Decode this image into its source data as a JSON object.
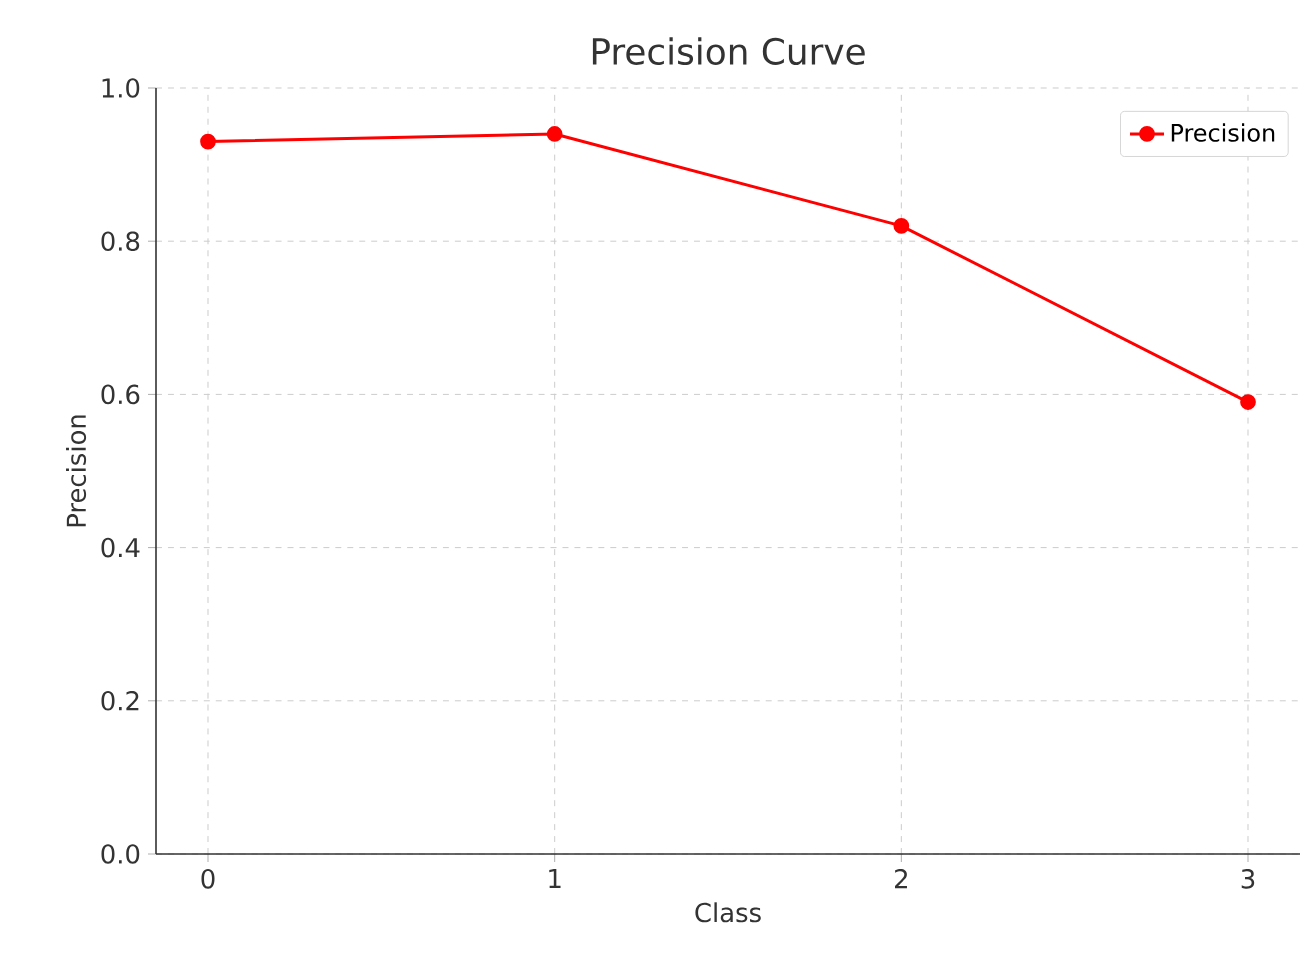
{
  "chart_data": {
    "type": "line",
    "title": "Precision Curve",
    "xlabel": "Class",
    "ylabel": "Precision",
    "x": [
      0,
      1,
      2,
      3
    ],
    "series": [
      {
        "name": "Precision",
        "color": "#ff0000",
        "values": [
          0.93,
          0.94,
          0.82,
          0.59
        ]
      }
    ],
    "xlim": [
      -0.15,
      3.15
    ],
    "xticks": [
      0,
      1,
      2,
      3
    ],
    "ylim": [
      0,
      1
    ],
    "yticks": [
      {
        "value": 0,
        "label": "0.0"
      },
      0.2,
      0.4,
      0.6,
      0.8,
      {
        "value": 1,
        "label": "1.0"
      }
    ],
    "grid": true,
    "legend": "top right",
    "marker": "circle",
    "line_style": "solid"
  }
}
